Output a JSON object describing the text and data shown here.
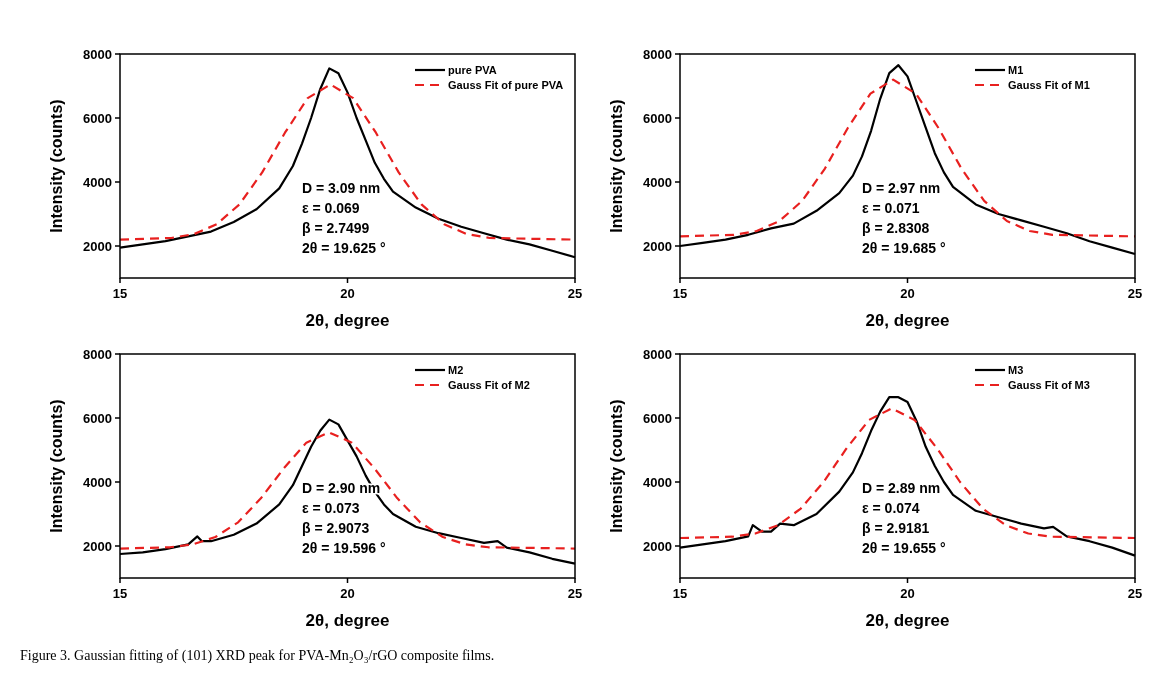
{
  "chart_data": [
    {
      "type": "line",
      "xlabel": "2θ, degree",
      "ylabel": "Intensity (counts)",
      "xlim": [
        15,
        25
      ],
      "xticks": [
        15,
        20,
        25
      ],
      "ylim": [
        1000,
        8000
      ],
      "yticks": [
        2000,
        4000,
        6000,
        8000
      ],
      "legend": "top right",
      "annotations": [
        "D = 3.09 nm",
        "ε = 0.069",
        "β = 2.7499",
        "2θ = 19.625 °"
      ],
      "series": [
        {
          "name": "pure PVA",
          "color": "#000000",
          "line_style": "solid",
          "x": [
            15,
            15.5,
            16,
            16.5,
            17,
            17.5,
            18,
            18.5,
            18.8,
            19,
            19.2,
            19.4,
            19.6,
            19.8,
            20,
            20.2,
            20.4,
            20.6,
            20.8,
            21,
            21.5,
            22,
            22.5,
            23,
            23.5,
            24,
            24.5,
            25
          ],
          "values": [
            1950,
            2050,
            2150,
            2300,
            2450,
            2750,
            3150,
            3800,
            4500,
            5200,
            6000,
            6900,
            7550,
            7400,
            6800,
            6000,
            5300,
            4600,
            4100,
            3700,
            3200,
            2850,
            2600,
            2400,
            2200,
            2050,
            1850,
            1650
          ]
        },
        {
          "name": "Gauss Fit of pure PVA",
          "color": "#e8201f",
          "line_style": "dashed",
          "x": [
            15,
            16.125,
            16.625,
            17.125,
            17.625,
            18.125,
            18.625,
            19.125,
            19.625,
            20.125,
            20.625,
            21.125,
            21.625,
            22.125,
            22.625,
            23.125,
            25
          ],
          "values": [
            2200,
            2250,
            2370,
            2680,
            3300,
            4300,
            5540,
            6620,
            7050,
            6620,
            5540,
            4300,
            3300,
            2680,
            2370,
            2250,
            2200
          ]
        }
      ]
    },
    {
      "type": "line",
      "xlabel": "2θ, degree",
      "ylabel": "Intensity (counts)",
      "xlim": [
        15,
        25
      ],
      "xticks": [
        15,
        20,
        25
      ],
      "ylim": [
        1000,
        8000
      ],
      "yticks": [
        2000,
        4000,
        6000,
        8000
      ],
      "legend": "top right",
      "annotations": [
        "D = 2.97 nm",
        "ε = 0.071",
        "β = 2.8308",
        "2θ = 19.685 °"
      ],
      "series": [
        {
          "name": "M1",
          "color": "#000000",
          "line_style": "solid",
          "x": [
            15,
            15.5,
            16,
            16.5,
            17,
            17.5,
            18,
            18.5,
            18.8,
            19,
            19.2,
            19.4,
            19.6,
            19.8,
            20,
            20.2,
            20.4,
            20.6,
            20.8,
            21,
            21.5,
            22,
            22.5,
            23,
            23.5,
            24,
            24.5,
            25
          ],
          "values": [
            2000,
            2100,
            2200,
            2350,
            2550,
            2700,
            3100,
            3650,
            4200,
            4800,
            5600,
            6600,
            7400,
            7650,
            7300,
            6500,
            5700,
            4900,
            4300,
            3850,
            3300,
            3000,
            2800,
            2600,
            2400,
            2150,
            1950,
            1750
          ]
        },
        {
          "name": "Gauss Fit of M1",
          "color": "#e8201f",
          "line_style": "dashed",
          "x": [
            15,
            16.185,
            16.685,
            17.185,
            17.685,
            18.185,
            18.685,
            19.185,
            19.685,
            20.185,
            20.685,
            21.185,
            21.685,
            22.185,
            22.685,
            23.185,
            25
          ],
          "values": [
            2300,
            2350,
            2470,
            2780,
            3410,
            4420,
            5680,
            6760,
            7200,
            6760,
            5680,
            4420,
            3410,
            2780,
            2470,
            2350,
            2300
          ]
        }
      ]
    },
    {
      "type": "line",
      "xlabel": "2θ, degree",
      "ylabel": "Intensity (counts)",
      "xlim": [
        15,
        25
      ],
      "xticks": [
        15,
        20,
        25
      ],
      "ylim": [
        1000,
        8000
      ],
      "yticks": [
        2000,
        4000,
        6000,
        8000
      ],
      "legend": "top right",
      "annotations": [
        "D = 2.90 nm",
        "ε = 0.073",
        "β = 2.9073",
        "2θ = 19.596 °"
      ],
      "series": [
        {
          "name": "M2",
          "color": "#000000",
          "line_style": "solid",
          "x": [
            15,
            15.5,
            16,
            16.5,
            16.7,
            16.8,
            17,
            17.5,
            18,
            18.5,
            18.8,
            19,
            19.2,
            19.4,
            19.6,
            19.8,
            20,
            20.2,
            20.4,
            20.6,
            20.8,
            21,
            21.5,
            22,
            22.5,
            23,
            23.3,
            23.5,
            24,
            24.5,
            25
          ],
          "values": [
            1750,
            1800,
            1900,
            2050,
            2300,
            2150,
            2150,
            2350,
            2700,
            3300,
            3900,
            4500,
            5100,
            5600,
            5950,
            5800,
            5300,
            4800,
            4200,
            3700,
            3300,
            3000,
            2600,
            2400,
            2250,
            2100,
            2150,
            1950,
            1800,
            1600,
            1450
          ]
        },
        {
          "name": "Gauss Fit of M2",
          "color": "#e8201f",
          "line_style": "dashed",
          "x": [
            15,
            16.096,
            16.596,
            17.096,
            17.596,
            18.096,
            18.596,
            19.096,
            19.596,
            20.096,
            20.596,
            21.096,
            21.596,
            22.096,
            22.596,
            23.096,
            25
          ],
          "values": [
            1920,
            1960,
            2050,
            2280,
            2740,
            3490,
            4420,
            5230,
            5550,
            5230,
            4420,
            3490,
            2740,
            2280,
            2050,
            1960,
            1920
          ]
        }
      ]
    },
    {
      "type": "line",
      "xlabel": "2θ, degree",
      "ylabel": "Intensity (counts)",
      "xlim": [
        15,
        25
      ],
      "xticks": [
        15,
        20,
        25
      ],
      "ylim": [
        1000,
        8000
      ],
      "yticks": [
        2000,
        4000,
        6000,
        8000
      ],
      "legend": "top right",
      "annotations": [
        "D = 2.89 nm",
        "ε = 0.074",
        "β = 2.9181",
        "2θ = 19.655 °"
      ],
      "series": [
        {
          "name": "M3",
          "color": "#000000",
          "line_style": "solid",
          "x": [
            15,
            15.5,
            16,
            16.5,
            16.6,
            16.8,
            17,
            17.2,
            17.5,
            18,
            18.5,
            18.8,
            19,
            19.2,
            19.4,
            19.6,
            19.8,
            20,
            20.2,
            20.4,
            20.6,
            20.8,
            21,
            21.5,
            22,
            22.5,
            23,
            23.2,
            23.5,
            24,
            24.5,
            25
          ],
          "values": [
            1950,
            2050,
            2150,
            2300,
            2650,
            2450,
            2450,
            2700,
            2650,
            3000,
            3700,
            4300,
            4900,
            5600,
            6200,
            6650,
            6650,
            6500,
            5900,
            5100,
            4500,
            4000,
            3600,
            3100,
            2900,
            2700,
            2550,
            2600,
            2300,
            2150,
            1950,
            1700
          ]
        },
        {
          "name": "Gauss Fit of M3",
          "color": "#e8201f",
          "line_style": "dashed",
          "x": [
            15,
            16.155,
            16.655,
            17.155,
            17.655,
            18.155,
            18.655,
            19.155,
            19.655,
            20.155,
            20.655,
            21.155,
            21.655,
            22.155,
            22.655,
            23.155,
            25
          ],
          "values": [
            2250,
            2290,
            2390,
            2650,
            3170,
            4000,
            5040,
            5940,
            6300,
            5940,
            5040,
            4000,
            3170,
            2650,
            2390,
            2290,
            2250
          ]
        }
      ]
    },
    {
      "type": "other",
      "annotations": [
        "Figure 3. Gaussian fitting of (101) XRD peak for PVA-Mn₂O₃/rGO composite films."
      ]
    }
  ]
}
